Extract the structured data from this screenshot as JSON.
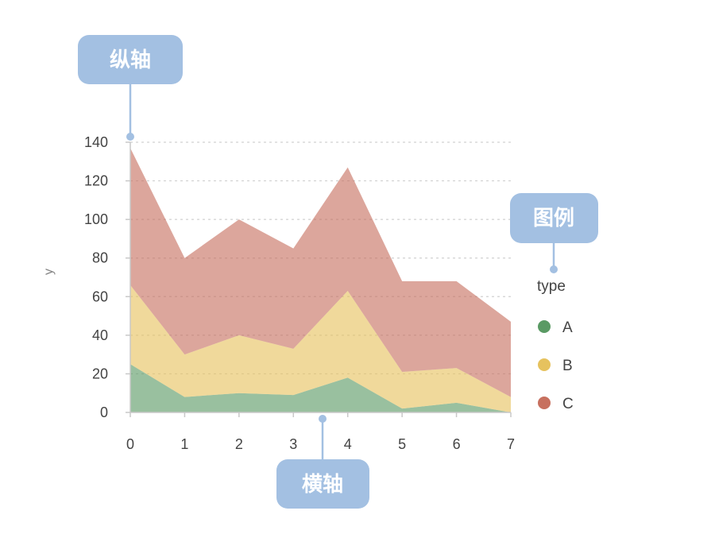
{
  "chart_data": {
    "type": "area",
    "stacked": true,
    "x": [
      0,
      1,
      2,
      3,
      4,
      5,
      6,
      7
    ],
    "series": [
      {
        "name": "A",
        "color": "#5a9a64",
        "values": [
          25,
          8,
          10,
          9,
          18,
          2,
          5,
          0
        ]
      },
      {
        "name": "B",
        "color": "#e6c25e",
        "values": [
          41,
          22,
          30,
          24,
          45,
          19,
          18,
          8
        ]
      },
      {
        "name": "C",
        "color": "#c7705f",
        "values": [
          71,
          50,
          60,
          52,
          64,
          47,
          45,
          39
        ]
      }
    ],
    "xlim": [
      0,
      7
    ],
    "ylim": [
      0,
      140
    ],
    "yticks": [
      0,
      20,
      40,
      60,
      80,
      100,
      120,
      140
    ],
    "xticks": [
      0,
      1,
      2,
      3,
      4,
      5,
      6,
      7
    ],
    "ylabel": "y",
    "xlabel": "",
    "grid": true,
    "legend": {
      "title": "type",
      "position": "right"
    }
  },
  "annotations": {
    "y_axis": "纵轴",
    "x_axis": "横轴",
    "legend": "图例",
    "color": "#a3c0e2"
  }
}
